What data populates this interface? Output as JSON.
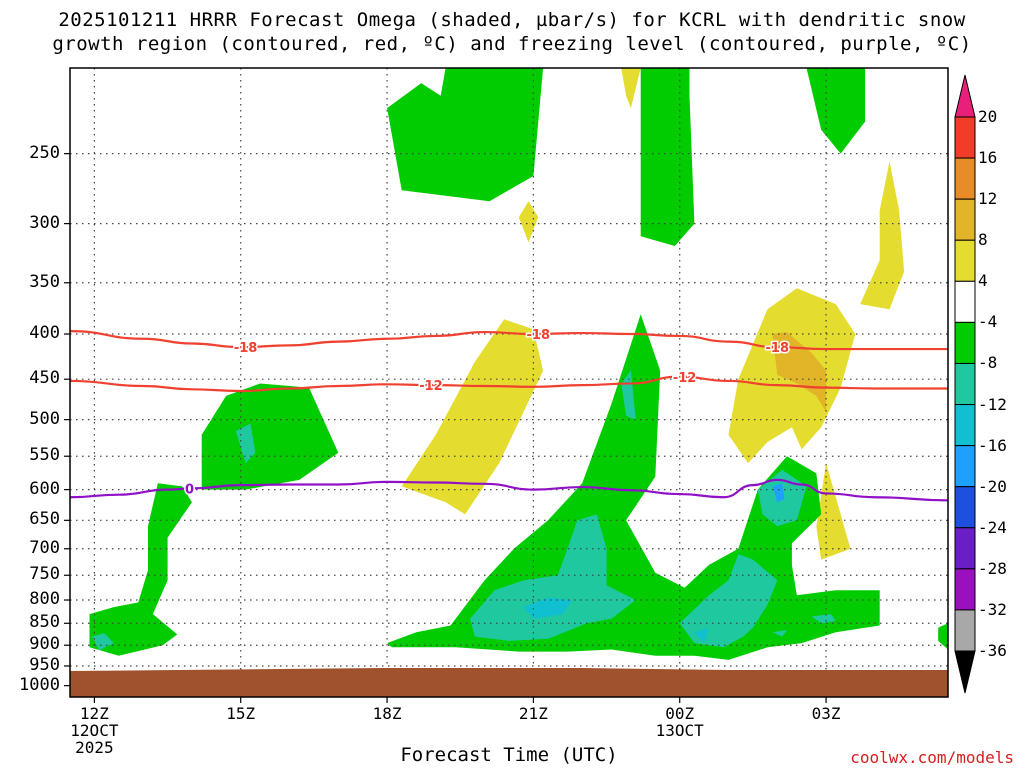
{
  "title": {
    "line1": "2025101211 HRRR Forecast Omega (shaded, µbar/s) for KCRL with dendritic snow",
    "line2": "growth region (contoured, red, ºC) and freezing level (contoured, purple, ºC)"
  },
  "credit": "coolwx.com/models",
  "colors": {
    "terrain": "#a0522d",
    "ascent_weak": "#00cc00",
    "ascent_mod": "#20c8a0",
    "ascent_strong": "#10bfd0",
    "ascent_vstrong": "#1ea0ff",
    "descent_weak": "#e5dc30",
    "descent_mod": "#e2b428",
    "dgz_contour": "#f04030",
    "freezing_contour": "#9010c8"
  },
  "chart_data": {
    "type": "heatmap",
    "title": "2025101211 HRRR Forecast Omega (shaded, µbar/s) for KCRL with dendritic snow growth region (contoured, red, ºC) and freezing level (contoured, purple, ºC)",
    "xlabel": "Forecast Time (UTC)",
    "ylabel": "",
    "y_scale": "log",
    "y_inverted": true,
    "ylim": [
      1030,
      200
    ],
    "xlim": [
      11.5,
      29.5
    ],
    "y_ticks": [
      250,
      300,
      350,
      400,
      450,
      500,
      550,
      600,
      650,
      700,
      750,
      800,
      850,
      900,
      950,
      1000
    ],
    "x_ticks": [
      {
        "label": "12Z",
        "sub": [
          "12OCT",
          "2025"
        ],
        "hour": 12
      },
      {
        "label": "15Z",
        "sub": [],
        "hour": 15
      },
      {
        "label": "18Z",
        "sub": [],
        "hour": 18
      },
      {
        "label": "21Z",
        "sub": [],
        "hour": 21
      },
      {
        "label": "00Z",
        "sub": [
          "13OCT"
        ],
        "hour": 24
      },
      {
        "label": "03Z",
        "sub": [],
        "hour": 27
      }
    ],
    "colorbar": {
      "levels": [
        20,
        16,
        12,
        8,
        4,
        -4,
        -8,
        -12,
        -16,
        -20,
        -24,
        -28,
        -32,
        -36
      ],
      "colors": [
        "#e8207a",
        "#f03c28",
        "#e88c28",
        "#e2b428",
        "#e5dc30",
        "#ffffff",
        "#00cc00",
        "#20c8a0",
        "#10bfd0",
        "#1ea0ff",
        "#1e50e0",
        "#6a1ec8",
        "#9a10c0",
        "#a8a8a8",
        "#000000"
      ]
    },
    "terrain_top_hpa": 960,
    "contours": [
      {
        "name": "-18",
        "color": "#f04030",
        "x": [
          11.5,
          13,
          14,
          15,
          16,
          17,
          18,
          19,
          20,
          21,
          22,
          23,
          24,
          25,
          26,
          27,
          28,
          29.5
        ],
        "y": [
          397,
          405,
          410,
          414,
          412,
          408,
          405,
          402,
          398,
          400,
          399,
          400,
          402,
          408,
          414,
          416,
          416,
          416
        ],
        "labels": [
          {
            "text": "-18",
            "x": 15.1
          },
          {
            "text": "-18",
            "x": 21.1
          },
          {
            "text": "-18",
            "x": 26.0
          }
        ]
      },
      {
        "name": "-12",
        "color": "#f04030",
        "x": [
          11.5,
          13,
          14,
          15,
          16,
          17,
          18,
          19,
          20,
          21,
          22,
          23,
          24,
          25,
          26,
          27,
          28,
          29.5
        ],
        "y": [
          452,
          458,
          462,
          464,
          461,
          458,
          456,
          457,
          458,
          459,
          457,
          455,
          447,
          452,
          457,
          460,
          461,
          461
        ],
        "labels": [
          {
            "text": "-12",
            "x": 18.9
          },
          {
            "text": "-12",
            "x": 24.1
          }
        ]
      },
      {
        "name": "0",
        "color": "#9010c8",
        "x": [
          11.5,
          12.5,
          13.5,
          14,
          15,
          16,
          17,
          18,
          19,
          20,
          21,
          22,
          23,
          24,
          24.9,
          25.5,
          26,
          26.5,
          27,
          28,
          29.5
        ],
        "y": [
          612,
          608,
          600,
          598,
          593,
          592,
          592,
          588,
          589,
          591,
          600,
          596,
          601,
          607,
          612,
          593,
          585,
          592,
          606,
          612,
          617
        ],
        "labels": [
          {
            "text": "0",
            "x": 13.95
          }
        ]
      }
    ],
    "shaded_regions": [
      {
        "level": "descent 4 to 8",
        "color": "#e5dc30",
        "points": [
          [
            19.8,
            430
          ],
          [
            20.4,
            385
          ],
          [
            21.0,
            395
          ],
          [
            21.2,
            440
          ],
          [
            20.8,
            490
          ],
          [
            20.3,
            560
          ],
          [
            19.6,
            640
          ],
          [
            19.2,
            620
          ],
          [
            18.3,
            595
          ],
          [
            19.0,
            520
          ]
        ]
      },
      {
        "level": "descent 4 to 8",
        "color": "#e5dc30",
        "points": [
          [
            25.2,
            450
          ],
          [
            25.8,
            375
          ],
          [
            26.4,
            355
          ],
          [
            27.2,
            370
          ],
          [
            27.6,
            400
          ],
          [
            27.3,
            460
          ],
          [
            26.9,
            510
          ],
          [
            26.5,
            540
          ],
          [
            26.3,
            510
          ],
          [
            25.8,
            530
          ],
          [
            25.4,
            560
          ],
          [
            25.0,
            520
          ]
        ]
      },
      {
        "level": "descent 4 to 8",
        "color": "#e5dc30",
        "points": [
          [
            27.7,
            370
          ],
          [
            28.1,
            330
          ],
          [
            28.1,
            290
          ],
          [
            28.3,
            255
          ],
          [
            28.5,
            290
          ],
          [
            28.6,
            340
          ],
          [
            28.3,
            375
          ]
        ]
      },
      {
        "level": "descent 4 to 8",
        "color": "#e5dc30",
        "points": [
          [
            27.0,
            560
          ],
          [
            27.3,
            640
          ],
          [
            27.5,
            700
          ],
          [
            26.9,
            720
          ],
          [
            26.8,
            660
          ]
        ]
      },
      {
        "level": "descent 4 to 8",
        "color": "#e5dc30",
        "points": [
          [
            20.9,
            283
          ],
          [
            21.1,
            295
          ],
          [
            20.9,
            315
          ],
          [
            20.7,
            295
          ]
        ]
      },
      {
        "level": "descent 4 to 8",
        "color": "#e5dc30",
        "points": [
          [
            22.8,
            200
          ],
          [
            23.2,
            200
          ],
          [
            23.0,
            222
          ],
          [
            22.9,
            215
          ]
        ]
      },
      {
        "level": "descent 8 to 12",
        "color": "#e2b428",
        "points": [
          [
            25.9,
            400
          ],
          [
            26.2,
            398
          ],
          [
            26.7,
            420
          ],
          [
            27.0,
            440
          ],
          [
            27.0,
            490
          ],
          [
            26.8,
            470
          ],
          [
            26.4,
            455
          ],
          [
            26.0,
            445
          ]
        ]
      },
      {
        "level": "ascent -4 to -8",
        "color": "#00cc00",
        "points": [
          [
            11.9,
            830
          ],
          [
            12.4,
            815
          ],
          [
            12.9,
            805
          ],
          [
            13.1,
            740
          ],
          [
            13.1,
            660
          ],
          [
            13.3,
            590
          ],
          [
            13.8,
            595
          ],
          [
            14.0,
            620
          ],
          [
            13.5,
            680
          ],
          [
            13.5,
            760
          ],
          [
            13.2,
            830
          ],
          [
            13.7,
            875
          ],
          [
            13.4,
            900
          ],
          [
            12.5,
            925
          ],
          [
            11.9,
            905
          ]
        ]
      },
      {
        "level": "ascent -4 to -8",
        "color": "#00cc00",
        "points": [
          [
            14.2,
            520
          ],
          [
            14.7,
            470
          ],
          [
            15.4,
            455
          ],
          [
            16.4,
            460
          ],
          [
            17.0,
            545
          ],
          [
            16.2,
            585
          ],
          [
            15.1,
            600
          ],
          [
            14.2,
            600
          ]
        ]
      },
      {
        "level": "ascent -4 to -8",
        "color": "#00cc00",
        "points": [
          [
            18.0,
            222
          ],
          [
            18.7,
            208
          ],
          [
            19.1,
            215
          ],
          [
            19.2,
            200
          ],
          [
            21.2,
            200
          ],
          [
            21.0,
            265
          ],
          [
            20.1,
            283
          ],
          [
            18.3,
            275
          ]
        ]
      },
      {
        "level": "ascent -4 to -8",
        "color": "#00cc00",
        "points": [
          [
            23.2,
            200
          ],
          [
            24.2,
            200
          ],
          [
            24.2,
            215
          ],
          [
            24.3,
            300
          ],
          [
            23.9,
            318
          ],
          [
            23.2,
            310
          ]
        ]
      },
      {
        "level": "ascent -4 to -8",
        "color": "#00cc00",
        "points": [
          [
            26.6,
            200
          ],
          [
            27.8,
            200
          ],
          [
            27.8,
            230
          ],
          [
            27.3,
            250
          ],
          [
            26.9,
            235
          ]
        ]
      },
      {
        "level": "ascent -4 to -8",
        "color": "#00cc00",
        "points": [
          [
            18.0,
            895
          ],
          [
            18.6,
            870
          ],
          [
            19.3,
            855
          ],
          [
            20.0,
            760
          ],
          [
            20.6,
            700
          ],
          [
            21.3,
            650
          ],
          [
            22.0,
            590
          ],
          [
            22.6,
            480
          ],
          [
            23.2,
            380
          ],
          [
            23.6,
            440
          ],
          [
            23.5,
            580
          ],
          [
            22.9,
            650
          ],
          [
            23.5,
            745
          ],
          [
            24.1,
            775
          ],
          [
            24.6,
            730
          ],
          [
            25.2,
            700
          ],
          [
            25.6,
            600
          ],
          [
            26.2,
            550
          ],
          [
            26.8,
            575
          ],
          [
            26.9,
            640
          ],
          [
            26.3,
            690
          ],
          [
            26.3,
            730
          ],
          [
            26.4,
            790
          ],
          [
            27.2,
            780
          ],
          [
            28.1,
            780
          ],
          [
            28.1,
            855
          ],
          [
            27.2,
            870
          ],
          [
            26.5,
            895
          ],
          [
            25.8,
            905
          ],
          [
            25.0,
            935
          ],
          [
            24.3,
            925
          ],
          [
            23.5,
            925
          ],
          [
            22.6,
            910
          ],
          [
            21.7,
            915
          ],
          [
            20.7,
            915
          ],
          [
            19.4,
            905
          ],
          [
            18.1,
            905
          ]
        ]
      },
      {
        "level": "ascent -4 to -8",
        "color": "#00cc00",
        "points": [
          [
            29.3,
            860
          ],
          [
            29.5,
            850
          ],
          [
            29.5,
            910
          ],
          [
            29.3,
            890
          ]
        ]
      },
      {
        "level": "ascent -8 to -12",
        "color": "#20c8a0",
        "points": [
          [
            11.95,
            880
          ],
          [
            12.2,
            872
          ],
          [
            12.4,
            895
          ],
          [
            12.1,
            912
          ]
        ]
      },
      {
        "level": "ascent -8 to -12",
        "color": "#20c8a0",
        "points": [
          [
            14.9,
            515
          ],
          [
            15.2,
            505
          ],
          [
            15.3,
            545
          ],
          [
            15.1,
            560
          ]
        ]
      },
      {
        "level": "ascent -8 to -12",
        "color": "#20c8a0",
        "points": [
          [
            22.8,
            455
          ],
          [
            23.0,
            440
          ],
          [
            23.1,
            500
          ],
          [
            22.9,
            495
          ]
        ]
      },
      {
        "level": "ascent -8 to -12",
        "color": "#20c8a0",
        "points": [
          [
            19.7,
            840
          ],
          [
            20.2,
            780
          ],
          [
            20.8,
            760
          ],
          [
            21.5,
            750
          ],
          [
            21.7,
            700
          ],
          [
            21.9,
            650
          ],
          [
            22.3,
            640
          ],
          [
            22.5,
            700
          ],
          [
            22.5,
            770
          ],
          [
            23.1,
            800
          ],
          [
            22.6,
            840
          ],
          [
            22.1,
            850
          ],
          [
            21.3,
            885
          ],
          [
            20.5,
            890
          ],
          [
            19.8,
            880
          ]
        ]
      },
      {
        "level": "ascent -8 to -12",
        "color": "#20c8a0",
        "points": [
          [
            24.0,
            850
          ],
          [
            24.6,
            790
          ],
          [
            25.0,
            760
          ],
          [
            25.2,
            710
          ],
          [
            25.5,
            720
          ],
          [
            26.0,
            760
          ],
          [
            25.8,
            810
          ],
          [
            25.5,
            860
          ],
          [
            25.3,
            880
          ],
          [
            24.9,
            905
          ],
          [
            24.3,
            895
          ]
        ]
      },
      {
        "level": "ascent -8 to -12",
        "color": "#20c8a0",
        "points": [
          [
            25.6,
            600
          ],
          [
            26.1,
            570
          ],
          [
            26.6,
            595
          ],
          [
            26.4,
            650
          ],
          [
            26.0,
            660
          ],
          [
            25.7,
            640
          ]
        ]
      },
      {
        "level": "ascent -8 to -12",
        "color": "#20c8a0",
        "points": [
          [
            26.7,
            835
          ],
          [
            27.1,
            830
          ],
          [
            27.2,
            845
          ],
          [
            26.9,
            850
          ]
        ]
      },
      {
        "level": "ascent -8 to -12",
        "color": "#20c8a0",
        "points": [
          [
            25.9,
            870
          ],
          [
            26.2,
            865
          ],
          [
            26.1,
            880
          ]
        ]
      },
      {
        "level": "ascent -12 to -16",
        "color": "#10bfd0",
        "points": [
          [
            20.8,
            815
          ],
          [
            21.3,
            795
          ],
          [
            21.8,
            800
          ],
          [
            21.6,
            830
          ],
          [
            21.0,
            840
          ]
        ]
      },
      {
        "level": "ascent -12 to -16",
        "color": "#10bfd0",
        "points": [
          [
            24.3,
            870
          ],
          [
            24.6,
            860
          ],
          [
            24.5,
            895
          ]
        ]
      },
      {
        "level": "ascent -16 to -20",
        "color": "#1ea0ff",
        "points": [
          [
            25.9,
            595
          ],
          [
            26.1,
            590
          ],
          [
            26.15,
            615
          ],
          [
            26.0,
            620
          ]
        ]
      }
    ]
  }
}
